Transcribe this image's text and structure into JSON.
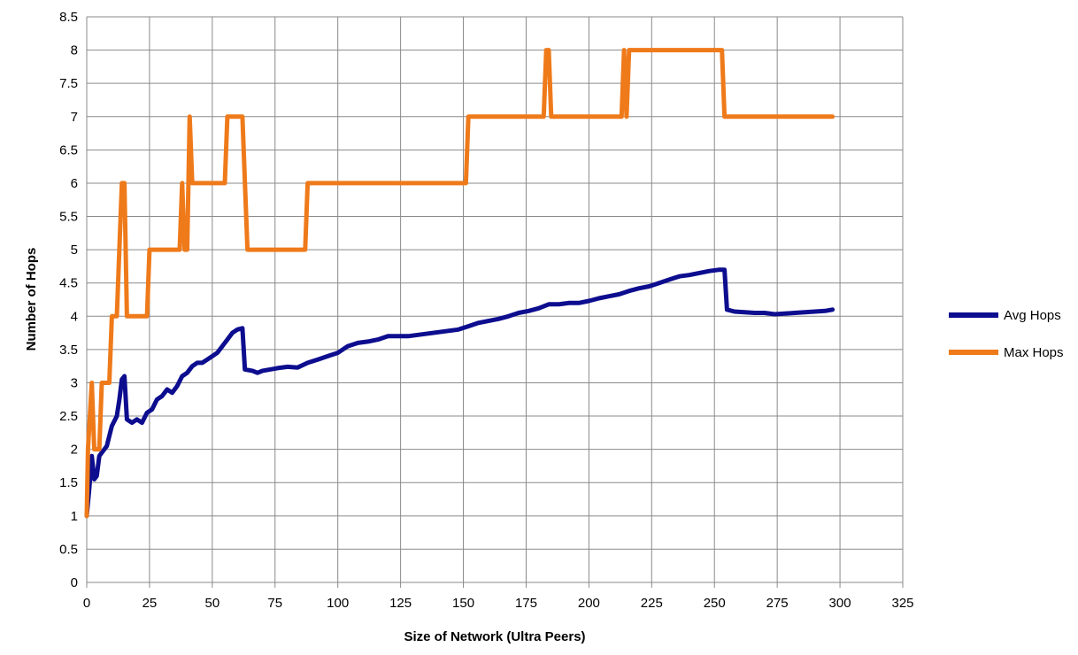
{
  "chart_data": {
    "type": "line",
    "xlabel": "Size of Network (Ultra Peers)",
    "ylabel": "Number of Hops",
    "xlim": [
      0,
      325
    ],
    "ylim": [
      0,
      8.5
    ],
    "x_ticks": [
      "0",
      "25",
      "50",
      "75",
      "100",
      "125",
      "150",
      "175",
      "200",
      "225",
      "250",
      "275",
      "300",
      "325"
    ],
    "y_ticks": [
      "0",
      "0.5",
      "1",
      "1.5",
      "2",
      "2.5",
      "3",
      "3.5",
      "4",
      "4.5",
      "5",
      "5.5",
      "6",
      "6.5",
      "7",
      "7.5",
      "8",
      "8.5"
    ],
    "grid": true,
    "legend_position": "right",
    "series": [
      {
        "name": "Avg Hops",
        "color": "#0d0d8f",
        "points": [
          [
            0,
            1.0
          ],
          [
            1,
            1.4
          ],
          [
            2,
            1.9
          ],
          [
            3,
            1.55
          ],
          [
            4,
            1.6
          ],
          [
            5,
            1.9
          ],
          [
            6,
            1.95
          ],
          [
            7,
            2.0
          ],
          [
            8,
            2.05
          ],
          [
            9,
            2.2
          ],
          [
            10,
            2.35
          ],
          [
            12,
            2.5
          ],
          [
            13,
            2.75
          ],
          [
            14,
            3.05
          ],
          [
            15,
            3.1
          ],
          [
            16,
            2.45
          ],
          [
            18,
            2.4
          ],
          [
            20,
            2.45
          ],
          [
            22,
            2.4
          ],
          [
            24,
            2.55
          ],
          [
            26,
            2.6
          ],
          [
            28,
            2.75
          ],
          [
            30,
            2.8
          ],
          [
            32,
            2.9
          ],
          [
            34,
            2.85
          ],
          [
            36,
            2.95
          ],
          [
            38,
            3.1
          ],
          [
            40,
            3.15
          ],
          [
            42,
            3.25
          ],
          [
            44,
            3.3
          ],
          [
            46,
            3.3
          ],
          [
            48,
            3.35
          ],
          [
            50,
            3.4
          ],
          [
            52,
            3.45
          ],
          [
            54,
            3.55
          ],
          [
            56,
            3.65
          ],
          [
            58,
            3.75
          ],
          [
            60,
            3.8
          ],
          [
            62,
            3.82
          ],
          [
            63,
            3.2
          ],
          [
            66,
            3.18
          ],
          [
            68,
            3.15
          ],
          [
            70,
            3.18
          ],
          [
            73,
            3.2
          ],
          [
            76,
            3.22
          ],
          [
            80,
            3.24
          ],
          [
            84,
            3.23
          ],
          [
            88,
            3.3
          ],
          [
            92,
            3.35
          ],
          [
            96,
            3.4
          ],
          [
            100,
            3.45
          ],
          [
            104,
            3.55
          ],
          [
            108,
            3.6
          ],
          [
            112,
            3.62
          ],
          [
            116,
            3.65
          ],
          [
            120,
            3.7
          ],
          [
            124,
            3.7
          ],
          [
            128,
            3.7
          ],
          [
            132,
            3.72
          ],
          [
            136,
            3.74
          ],
          [
            140,
            3.76
          ],
          [
            144,
            3.78
          ],
          [
            148,
            3.8
          ],
          [
            152,
            3.85
          ],
          [
            156,
            3.9
          ],
          [
            160,
            3.93
          ],
          [
            164,
            3.96
          ],
          [
            168,
            4.0
          ],
          [
            172,
            4.05
          ],
          [
            176,
            4.08
          ],
          [
            180,
            4.12
          ],
          [
            184,
            4.18
          ],
          [
            188,
            4.18
          ],
          [
            192,
            4.2
          ],
          [
            196,
            4.2
          ],
          [
            200,
            4.23
          ],
          [
            204,
            4.27
          ],
          [
            208,
            4.3
          ],
          [
            212,
            4.33
          ],
          [
            216,
            4.38
          ],
          [
            220,
            4.42
          ],
          [
            224,
            4.45
          ],
          [
            228,
            4.5
          ],
          [
            232,
            4.55
          ],
          [
            236,
            4.6
          ],
          [
            240,
            4.62
          ],
          [
            244,
            4.65
          ],
          [
            248,
            4.68
          ],
          [
            252,
            4.7
          ],
          [
            254,
            4.7
          ],
          [
            255,
            4.1
          ],
          [
            258,
            4.07
          ],
          [
            262,
            4.06
          ],
          [
            266,
            4.05
          ],
          [
            270,
            4.05
          ],
          [
            274,
            4.03
          ],
          [
            278,
            4.04
          ],
          [
            282,
            4.05
          ],
          [
            286,
            4.06
          ],
          [
            290,
            4.07
          ],
          [
            294,
            4.08
          ],
          [
            297,
            4.1
          ]
        ]
      },
      {
        "name": "Max Hops",
        "color": "#ef7a1a",
        "points": [
          [
            0,
            1
          ],
          [
            0.5,
            2
          ],
          [
            2,
            3
          ],
          [
            3,
            2
          ],
          [
            5,
            2
          ],
          [
            6,
            3
          ],
          [
            9,
            3
          ],
          [
            10,
            4
          ],
          [
            12,
            4
          ],
          [
            14,
            6
          ],
          [
            15,
            6
          ],
          [
            16,
            4
          ],
          [
            24,
            4
          ],
          [
            25,
            5
          ],
          [
            37,
            5
          ],
          [
            38,
            6
          ],
          [
            39,
            5
          ],
          [
            40,
            5
          ],
          [
            41,
            7
          ],
          [
            42,
            6
          ],
          [
            55,
            6
          ],
          [
            56,
            7
          ],
          [
            62,
            7
          ],
          [
            64,
            5
          ],
          [
            87,
            5
          ],
          [
            88,
            6
          ],
          [
            151,
            6
          ],
          [
            152,
            7
          ],
          [
            182,
            7
          ],
          [
            183,
            8
          ],
          [
            184,
            8
          ],
          [
            185,
            7
          ],
          [
            213,
            7
          ],
          [
            214,
            8
          ],
          [
            215,
            7
          ],
          [
            216,
            8
          ],
          [
            253,
            8
          ],
          [
            254,
            7
          ],
          [
            297,
            7
          ]
        ]
      }
    ]
  }
}
